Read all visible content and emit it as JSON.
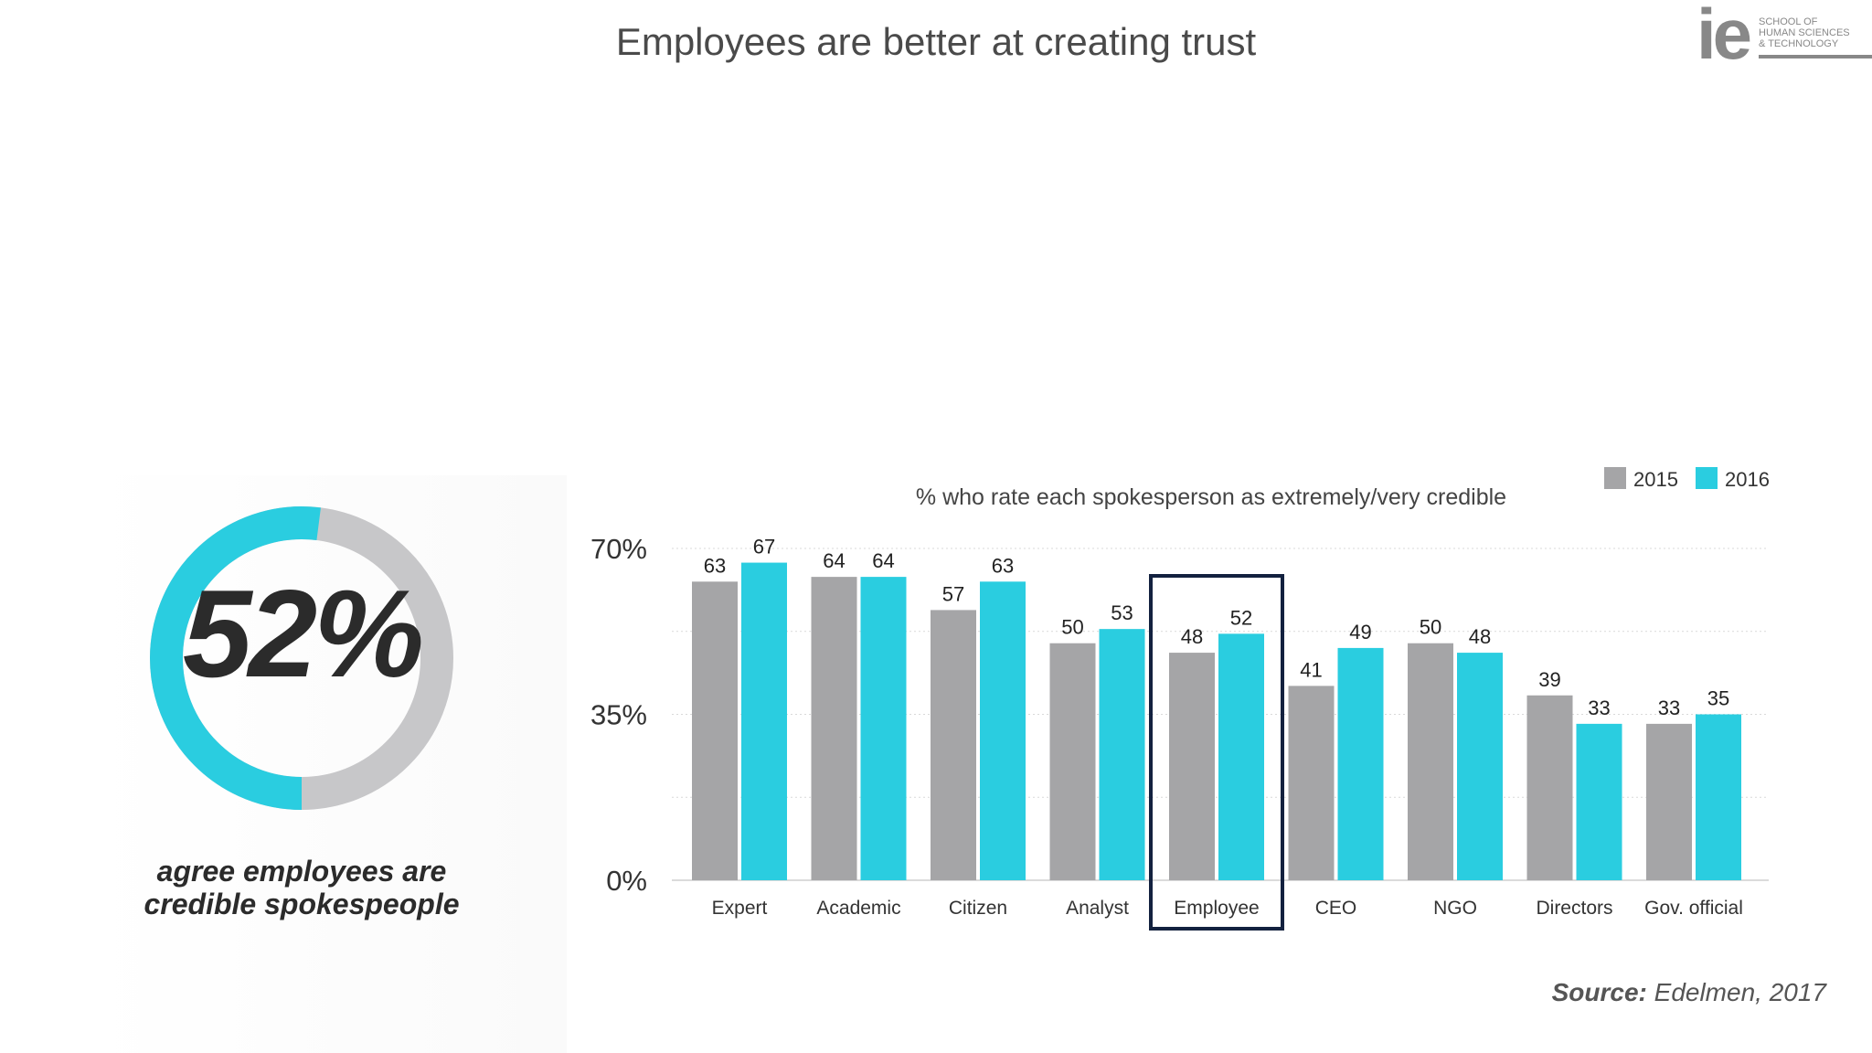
{
  "title": "Employees are better at creating trust",
  "logo": {
    "mark": "ie",
    "lines": [
      "SCHOOL OF",
      "HUMAN SCIENCES",
      "& TECHNOLOGY"
    ]
  },
  "highlight": {
    "value": "52%",
    "fraction": 0.52,
    "caption": "agree employees are\ncredible spokespeople",
    "colors": {
      "filled": "#2ACDE0",
      "remaining": "#C7C7C9"
    }
  },
  "chart_data": {
    "type": "bar",
    "title": "% who rate each spokesperson as extremely/very credible",
    "categories": [
      "Expert",
      "Academic",
      "Citizen",
      "Analyst",
      "Employee",
      "CEO",
      "NGO",
      "Directors",
      "Gov. official"
    ],
    "series": [
      {
        "name": "2015",
        "color": "#A5A5A7",
        "values": [
          63,
          64,
          57,
          50,
          48,
          41,
          50,
          39,
          33
        ]
      },
      {
        "name": "2016",
        "color": "#2ACDE0",
        "values": [
          67,
          64,
          63,
          53,
          52,
          49,
          48,
          33,
          35
        ]
      }
    ],
    "ylim": [
      0,
      70
    ],
    "y_ticks": [
      {
        "value": 70,
        "label": "70%"
      },
      {
        "value": 35,
        "label": "35%"
      },
      {
        "value": 0,
        "label": "0%"
      }
    ],
    "grid": true,
    "legend": "top-right",
    "highlighted_category": "Employee",
    "highlight_color": "#13213F"
  },
  "source": {
    "label": "Source:",
    "text": "Edelmen, 2017"
  }
}
